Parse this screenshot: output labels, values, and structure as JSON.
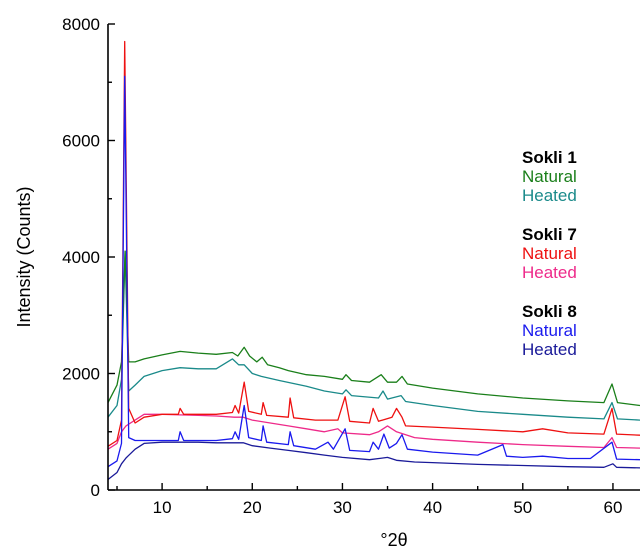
{
  "chart_data": {
    "type": "line",
    "title": "",
    "xlabel": "°2θ",
    "ylabel": "Intensity (Counts)",
    "xlim": [
      4,
      63
    ],
    "ylim": [
      0,
      8000
    ],
    "x_ticks": [
      "10",
      "20",
      "30",
      "40",
      "50",
      "60"
    ],
    "y_ticks": [
      "0",
      "2000",
      "4000",
      "6000",
      "8000"
    ],
    "grid": false,
    "legend_position": "right",
    "legend_groups": [
      {
        "heading": "Sokli 1",
        "entries": [
          {
            "label": "Natural",
            "color": "#1a7f1a"
          },
          {
            "label": "Heated",
            "color": "#1a8a8a"
          }
        ]
      },
      {
        "heading": "Sokli 7",
        "entries": [
          {
            "label": "Natural",
            "color": "#ee1111"
          },
          {
            "label": "Heated",
            "color": "#ee2a8a"
          }
        ]
      },
      {
        "heading": "Sokli 8",
        "entries": [
          {
            "label": "Natural",
            "color": "#1a1aee"
          },
          {
            "label": "Heated",
            "color": "#1a1a99"
          }
        ]
      }
    ],
    "series": [
      {
        "name": "Sokli 1 Natural",
        "color": "#1a7f1a",
        "points": [
          [
            4,
            1500
          ],
          [
            5,
            1800
          ],
          [
            5.5,
            2200
          ],
          [
            5.9,
            4100
          ],
          [
            6.3,
            2200
          ],
          [
            7,
            2200
          ],
          [
            8,
            2250
          ],
          [
            10,
            2320
          ],
          [
            12,
            2380
          ],
          [
            14,
            2350
          ],
          [
            16,
            2330
          ],
          [
            17.8,
            2360
          ],
          [
            18.4,
            2300
          ],
          [
            19.1,
            2450
          ],
          [
            19.7,
            2300
          ],
          [
            20.5,
            2200
          ],
          [
            21.1,
            2280
          ],
          [
            21.7,
            2150
          ],
          [
            23,
            2100
          ],
          [
            24,
            2050
          ],
          [
            26,
            1980
          ],
          [
            28,
            1950
          ],
          [
            30,
            1900
          ],
          [
            30.4,
            1980
          ],
          [
            31,
            1880
          ],
          [
            33,
            1850
          ],
          [
            34.3,
            1980
          ],
          [
            35,
            1850
          ],
          [
            36,
            1850
          ],
          [
            36.6,
            1950
          ],
          [
            37.2,
            1820
          ],
          [
            40,
            1750
          ],
          [
            45,
            1650
          ],
          [
            50,
            1580
          ],
          [
            55,
            1530
          ],
          [
            59,
            1500
          ],
          [
            59.9,
            1820
          ],
          [
            60.5,
            1500
          ],
          [
            63,
            1450
          ]
        ]
      },
      {
        "name": "Sokli 1 Heated",
        "color": "#1a8a8a",
        "points": [
          [
            4,
            1250
          ],
          [
            5,
            1450
          ],
          [
            5.5,
            1900
          ],
          [
            5.9,
            4100
          ],
          [
            6.3,
            1700
          ],
          [
            7,
            1800
          ],
          [
            8,
            1950
          ],
          [
            10,
            2050
          ],
          [
            12,
            2100
          ],
          [
            14,
            2080
          ],
          [
            16,
            2080
          ],
          [
            17.8,
            2250
          ],
          [
            18.5,
            2150
          ],
          [
            19.1,
            2150
          ],
          [
            20,
            2000
          ],
          [
            21,
            1950
          ],
          [
            23,
            1880
          ],
          [
            26,
            1780
          ],
          [
            28,
            1700
          ],
          [
            30,
            1650
          ],
          [
            30.4,
            1720
          ],
          [
            31,
            1620
          ],
          [
            34,
            1580
          ],
          [
            34.5,
            1700
          ],
          [
            35,
            1560
          ],
          [
            36.5,
            1620
          ],
          [
            37,
            1520
          ],
          [
            40,
            1450
          ],
          [
            45,
            1350
          ],
          [
            50,
            1300
          ],
          [
            55,
            1250
          ],
          [
            59,
            1220
          ],
          [
            59.9,
            1500
          ],
          [
            60.5,
            1220
          ],
          [
            63,
            1200
          ]
        ]
      },
      {
        "name": "Sokli 7 Natural",
        "color": "#ee1111",
        "points": [
          [
            4,
            750
          ],
          [
            5,
            850
          ],
          [
            5.5,
            1200
          ],
          [
            5.85,
            7700
          ],
          [
            6.3,
            1400
          ],
          [
            7,
            1150
          ],
          [
            8,
            1250
          ],
          [
            10,
            1300
          ],
          [
            11.8,
            1300
          ],
          [
            12,
            1400
          ],
          [
            12.4,
            1300
          ],
          [
            14,
            1300
          ],
          [
            16,
            1300
          ],
          [
            17.8,
            1330
          ],
          [
            18.1,
            1450
          ],
          [
            18.5,
            1320
          ],
          [
            19.1,
            1850
          ],
          [
            19.6,
            1350
          ],
          [
            21,
            1300
          ],
          [
            21.2,
            1500
          ],
          [
            21.6,
            1280
          ],
          [
            24,
            1250
          ],
          [
            24.2,
            1580
          ],
          [
            24.6,
            1240
          ],
          [
            27,
            1200
          ],
          [
            29.5,
            1200
          ],
          [
            30.3,
            1600
          ],
          [
            30.8,
            1180
          ],
          [
            33,
            1150
          ],
          [
            33.4,
            1400
          ],
          [
            34,
            1180
          ],
          [
            35.5,
            1250
          ],
          [
            36,
            1400
          ],
          [
            36.6,
            1250
          ],
          [
            37,
            1100
          ],
          [
            40,
            1080
          ],
          [
            45,
            1040
          ],
          [
            50,
            1000
          ],
          [
            52.2,
            1050
          ],
          [
            55,
            980
          ],
          [
            59,
            960
          ],
          [
            59.9,
            1400
          ],
          [
            60.4,
            960
          ],
          [
            63,
            940
          ]
        ]
      },
      {
        "name": "Sokli 7 Heated",
        "color": "#ee2a8a",
        "points": [
          [
            4,
            700
          ],
          [
            5,
            800
          ],
          [
            5.5,
            1000
          ],
          [
            6,
            1100
          ],
          [
            7,
            1200
          ],
          [
            8,
            1300
          ],
          [
            10,
            1300
          ],
          [
            12,
            1290
          ],
          [
            14,
            1280
          ],
          [
            16,
            1270
          ],
          [
            18,
            1250
          ],
          [
            19,
            1250
          ],
          [
            20,
            1200
          ],
          [
            22,
            1150
          ],
          [
            24,
            1100
          ],
          [
            26,
            1050
          ],
          [
            28,
            1000
          ],
          [
            29.5,
            1050
          ],
          [
            30,
            980
          ],
          [
            33,
            950
          ],
          [
            34,
            1000
          ],
          [
            35,
            1100
          ],
          [
            36,
            1000
          ],
          [
            38,
            900
          ],
          [
            40,
            870
          ],
          [
            45,
            820
          ],
          [
            50,
            780
          ],
          [
            55,
            750
          ],
          [
            59,
            730
          ],
          [
            59.9,
            900
          ],
          [
            60.4,
            730
          ],
          [
            63,
            720
          ]
        ]
      },
      {
        "name": "Sokli 8 Natural",
        "color": "#1a1aee",
        "points": [
          [
            4,
            400
          ],
          [
            5,
            500
          ],
          [
            5.5,
            800
          ],
          [
            5.85,
            7100
          ],
          [
            6.3,
            900
          ],
          [
            7,
            850
          ],
          [
            9,
            850
          ],
          [
            11.8,
            850
          ],
          [
            12,
            1000
          ],
          [
            12.4,
            850
          ],
          [
            14,
            850
          ],
          [
            16,
            850
          ],
          [
            17.8,
            880
          ],
          [
            18.1,
            1000
          ],
          [
            18.5,
            870
          ],
          [
            19.1,
            1450
          ],
          [
            19.6,
            900
          ],
          [
            21,
            850
          ],
          [
            21.2,
            1100
          ],
          [
            21.6,
            820
          ],
          [
            24,
            780
          ],
          [
            24.2,
            1000
          ],
          [
            24.6,
            760
          ],
          [
            27,
            700
          ],
          [
            28.4,
            820
          ],
          [
            29,
            700
          ],
          [
            30.3,
            1050
          ],
          [
            30.8,
            680
          ],
          [
            33,
            660
          ],
          [
            33.4,
            820
          ],
          [
            34,
            700
          ],
          [
            34.6,
            960
          ],
          [
            35.2,
            720
          ],
          [
            36,
            800
          ],
          [
            36.6,
            950
          ],
          [
            37.2,
            700
          ],
          [
            40,
            650
          ],
          [
            45,
            600
          ],
          [
            47.8,
            780
          ],
          [
            48.2,
            580
          ],
          [
            50,
            560
          ],
          [
            52.2,
            580
          ],
          [
            55,
            540
          ],
          [
            57.5,
            540
          ],
          [
            59.9,
            820
          ],
          [
            60.4,
            530
          ],
          [
            63,
            520
          ]
        ]
      },
      {
        "name": "Sokli 8 Heated",
        "color": "#1a1a99",
        "points": [
          [
            4,
            180
          ],
          [
            5,
            300
          ],
          [
            5.5,
            450
          ],
          [
            6,
            550
          ],
          [
            7,
            700
          ],
          [
            8,
            800
          ],
          [
            10,
            820
          ],
          [
            12,
            820
          ],
          [
            14,
            820
          ],
          [
            16,
            810
          ],
          [
            18,
            810
          ],
          [
            19,
            810
          ],
          [
            20,
            760
          ],
          [
            22,
            720
          ],
          [
            24,
            680
          ],
          [
            26,
            640
          ],
          [
            28,
            600
          ],
          [
            30,
            560
          ],
          [
            33,
            520
          ],
          [
            35,
            560
          ],
          [
            36,
            510
          ],
          [
            38,
            480
          ],
          [
            40,
            470
          ],
          [
            45,
            440
          ],
          [
            50,
            420
          ],
          [
            55,
            400
          ],
          [
            59,
            390
          ],
          [
            60,
            450
          ],
          [
            60.4,
            390
          ],
          [
            63,
            380
          ]
        ]
      }
    ]
  }
}
